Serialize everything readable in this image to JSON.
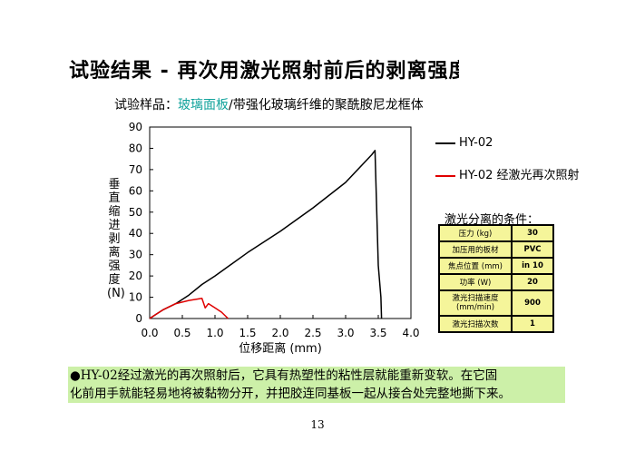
{
  "title": "试验结果 - 再次用激光照射前后的剥离强度对比",
  "sample": {
    "prefix": "试验样品：",
    "highlight": "玻璃面板",
    "rest": "/带强化玻璃纤维的聚酰胺尼龙框体"
  },
  "colors": {
    "series_a": "#000000",
    "series_b": "#e00000",
    "table_bg": "#f5f59a",
    "note_bg": "#ccf0a8",
    "highlight": "#12a39c"
  },
  "chart_data": {
    "type": "line",
    "xlabel": "位移距离 (mm)",
    "ylabel": "垂直缩进剥离强度(N)",
    "xlim": [
      0,
      4.0
    ],
    "ylim": [
      0,
      90
    ],
    "xticks": [
      "0.0",
      "0.5",
      "1.0",
      "1.5",
      "2.0",
      "2.5",
      "3.0",
      "3.5",
      "4.0"
    ],
    "yticks": [
      "0",
      "10",
      "20",
      "30",
      "40",
      "50",
      "60",
      "70",
      "80",
      "90"
    ],
    "grid": false,
    "legend_position": "right",
    "series": [
      {
        "name": "HY-02",
        "color": "#000000",
        "x": [
          0.0,
          0.1,
          0.2,
          0.4,
          0.6,
          0.8,
          1.0,
          1.5,
          2.0,
          2.5,
          3.0,
          3.4,
          3.45,
          3.5,
          3.54,
          3.55
        ],
        "y": [
          0,
          2,
          4,
          7,
          11,
          16,
          20,
          31,
          41,
          52,
          64,
          77,
          79,
          25,
          10,
          0
        ]
      },
      {
        "name": "HY-02 经激光再次照射",
        "color": "#e00000",
        "x": [
          0.0,
          0.1,
          0.2,
          0.4,
          0.6,
          0.8,
          0.85,
          0.9,
          1.0,
          1.1,
          1.2
        ],
        "y": [
          0,
          2,
          4,
          7,
          8.5,
          9.5,
          5,
          7,
          5,
          3,
          0
        ]
      }
    ]
  },
  "conditions": {
    "title": "激光分离的条件：",
    "rows": [
      {
        "label": "压力 (kg)",
        "value": "30"
      },
      {
        "label": "加压用的板材",
        "value": "PVC"
      },
      {
        "label": "焦点位置 (mm)",
        "value": "in 10"
      },
      {
        "label": "功率 (W)",
        "value": "20"
      },
      {
        "label": "激光扫描速度 (mm/min)",
        "value": "900"
      },
      {
        "label": "激光扫描次数",
        "value": "1"
      }
    ]
  },
  "note": {
    "line1": "●HY-02经过激光的再次照射后，它具有热塑性的粘性层就能重新变软。在它固",
    "line2": "化前用手就能轻易地将被黏物分开，并把胶连同基板一起从接合处完整地撕下来。"
  },
  "page_number": "13"
}
